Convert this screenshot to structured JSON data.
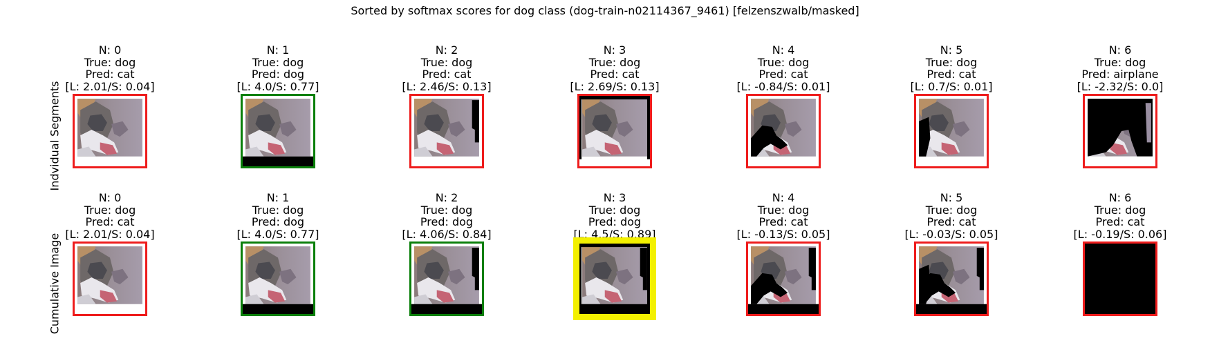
{
  "title": "Sorted by softmax scores for dog class (dog-train-n02114367_9461) [felzenszwalb/masked]",
  "rows": [
    {
      "label": "Indvidual Segments",
      "panels": [
        {
          "n": "N: 0",
          "true": "True: dog",
          "pred": "Pred: cat",
          "score": "[L: 2.01/S: 0.04]",
          "frame_color": "red",
          "mask": "none"
        },
        {
          "n": "N: 1",
          "true": "True: dog",
          "pred": "Pred: dog",
          "score": "[L: 4.0/S: 0.77]",
          "frame_color": "green",
          "mask": "bottom"
        },
        {
          "n": "N: 2",
          "true": "True: dog",
          "pred": "Pred: cat",
          "score": "[L: 2.46/S: 0.13]",
          "frame_color": "red",
          "mask": "right-strip"
        },
        {
          "n": "N: 3",
          "true": "True: dog",
          "pred": "Pred: cat",
          "score": "[L: 2.69/S: 0.13]",
          "frame_color": "red",
          "mask": "border"
        },
        {
          "n": "N: 4",
          "true": "True: dog",
          "pred": "Pred: cat",
          "score": "[L: -0.84/S: 0.01]",
          "frame_color": "red",
          "mask": "neck"
        },
        {
          "n": "N: 5",
          "true": "True: dog",
          "pred": "Pred: cat",
          "score": "[L: 0.7/S: 0.01]",
          "frame_color": "red",
          "mask": "left-chunk"
        },
        {
          "n": "N: 6",
          "true": "True: dog",
          "pred": "Pred: airplane",
          "score": "[L: -2.32/S: 0.0]",
          "frame_color": "red",
          "mask": "mostly-black"
        }
      ]
    },
    {
      "label": "Cumulative Image",
      "panels": [
        {
          "n": "N: 0",
          "true": "True: dog",
          "pred": "Pred: cat",
          "score": "[L: 2.01/S: 0.04]",
          "frame_color": "red",
          "mask": "none"
        },
        {
          "n": "N: 1",
          "true": "True: dog",
          "pred": "Pred: dog",
          "score": "[L: 4.0/S: 0.77]",
          "frame_color": "green",
          "mask": "bottom"
        },
        {
          "n": "N: 2",
          "true": "True: dog",
          "pred": "Pred: dog",
          "score": "[L: 4.06/S: 0.84]",
          "frame_color": "green",
          "mask": "bottom+right-strip"
        },
        {
          "n": "N: 3",
          "true": "True: dog",
          "pred": "Pred: dog",
          "score": "[L: 4.5/S: 0.89]",
          "frame_color": "yellow",
          "mask": "bottom+right-strip+border"
        },
        {
          "n": "N: 4",
          "true": "True: dog",
          "pred": "Pred: cat",
          "score": "[L: -0.13/S: 0.05]",
          "frame_color": "red",
          "mask": "cumulative-neck"
        },
        {
          "n": "N: 5",
          "true": "True: dog",
          "pred": "Pred: cat",
          "score": "[L: -0.03/S: 0.05]",
          "frame_color": "red",
          "mask": "cumulative-left"
        },
        {
          "n": "N: 6",
          "true": "True: dog",
          "pred": "Pred: cat",
          "score": "[L: -0.19/S: 0.06]",
          "frame_color": "red",
          "mask": "all-black"
        }
      ]
    }
  ]
}
